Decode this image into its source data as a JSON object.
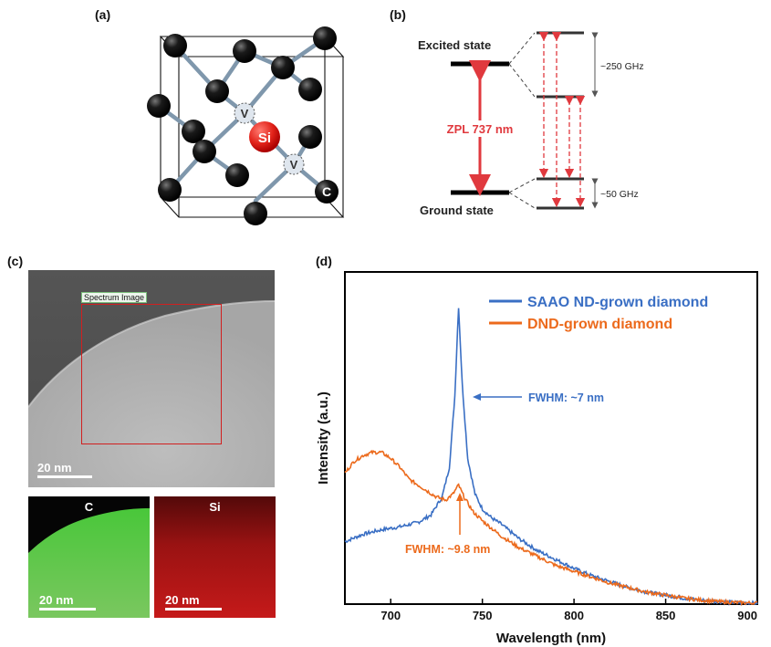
{
  "panels": {
    "a": {
      "label": "(a)",
      "atoms": {
        "si": "Si",
        "v": "V",
        "c": "C"
      }
    },
    "b": {
      "label": "(b)",
      "excited_state": "Excited state",
      "ground_state": "Ground state",
      "zpl": "ZPL 737 nm",
      "excited_splitting": "~250 GHz",
      "ground_splitting": "~50 GHz"
    },
    "c": {
      "label": "(c)",
      "spectrum_image_label": "Spectrum Image",
      "scale_bar": "20 nm",
      "map_c_title": "C",
      "map_si_title": "Si",
      "map_c_scale": "20 nm",
      "map_si_scale": "20 nm"
    },
    "d": {
      "label": "(d)",
      "fwhm_blue": "FWHM: ~7 nm",
      "fwhm_orange": "FWHM: ~9.8 nm"
    }
  },
  "colors": {
    "series_blue": "#3a6fc4",
    "series_orange": "#ec6a1c",
    "arrow_red": "#e0393e",
    "si_red": "#e2231a",
    "eds_green": "#5bd24a",
    "eds_red": "#d21a1a"
  },
  "chart_data": {
    "type": "line",
    "xlabel": "Wavelength (nm)",
    "ylabel": "Intensity (a.u.)",
    "xlim": [
      675,
      900
    ],
    "xticks": [
      700,
      750,
      800,
      850,
      900
    ],
    "y_ticks_shown": false,
    "legend_position": "top-right",
    "series": [
      {
        "name": "SAAO ND-grown diamond",
        "color": "#3a6fc4",
        "x": [
          675,
          685,
          695,
          705,
          715,
          722,
          728,
          732,
          735,
          737,
          739,
          742,
          746,
          750,
          755,
          760,
          770,
          780,
          790,
          800,
          810,
          820,
          830,
          840,
          850,
          860,
          870,
          880,
          890,
          900
        ],
        "y": [
          0.21,
          0.235,
          0.25,
          0.26,
          0.275,
          0.3,
          0.36,
          0.46,
          0.7,
          1.0,
          0.74,
          0.49,
          0.37,
          0.32,
          0.29,
          0.27,
          0.22,
          0.18,
          0.15,
          0.12,
          0.095,
          0.075,
          0.055,
          0.04,
          0.03,
          0.02,
          0.013,
          0.008,
          0.005,
          0.003
        ]
      },
      {
        "name": "DND-grown diamond",
        "color": "#ec6a1c",
        "x": [
          675,
          680,
          685,
          690,
          695,
          700,
          705,
          710,
          715,
          720,
          725,
          730,
          734,
          737,
          740,
          745,
          750,
          760,
          770,
          780,
          790,
          800,
          810,
          820,
          830,
          840,
          850,
          860,
          870,
          880,
          890,
          900
        ],
        "y": [
          0.44,
          0.48,
          0.5,
          0.51,
          0.51,
          0.49,
          0.46,
          0.42,
          0.4,
          0.38,
          0.36,
          0.35,
          0.37,
          0.4,
          0.36,
          0.31,
          0.28,
          0.23,
          0.19,
          0.16,
          0.13,
          0.11,
          0.09,
          0.07,
          0.055,
          0.04,
          0.03,
          0.02,
          0.013,
          0.008,
          0.005,
          0.003
        ]
      }
    ]
  }
}
